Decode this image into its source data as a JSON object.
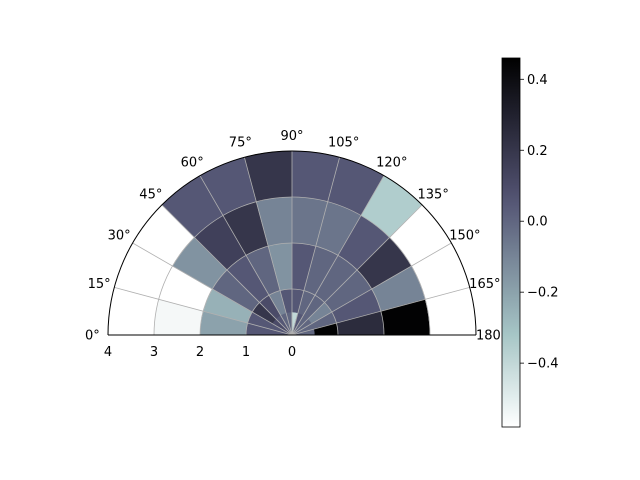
{
  "chart_data": {
    "type": "heatmap",
    "projection": "polar",
    "theta_range_deg": [
      0,
      180
    ],
    "r_range": [
      0,
      4
    ],
    "theta_ticks": [
      "0°",
      "15°",
      "30°",
      "45°",
      "60°",
      "75°",
      "90°",
      "105°",
      "120°",
      "135°",
      "150°",
      "165°",
      "180°"
    ],
    "r_ticks": [
      "4",
      "3",
      "2",
      "1",
      "0"
    ],
    "r_tick_values": [
      4,
      3,
      2,
      1,
      0
    ],
    "r_edges": [
      0,
      0.5,
      1,
      2,
      3,
      4
    ],
    "theta_edges_deg": [
      0,
      15,
      30,
      45,
      60,
      75,
      90,
      105,
      120,
      135,
      150,
      165,
      180
    ],
    "values": [
      [
        0.05,
        0.05,
        0.1,
        0.05,
        0.0,
        0.0,
        -0.4,
        0.05,
        0.0,
        0.0,
        0.0,
        0.0
      ],
      [
        0.05,
        0.05,
        0.2,
        0.1,
        -0.1,
        0.05,
        0.05,
        0.0,
        0.0,
        -0.1,
        0.0,
        0.45
      ],
      [
        -0.2,
        -0.25,
        0.0,
        0.05,
        0.0,
        -0.15,
        0.05,
        0.0,
        0.0,
        0.0,
        0.05,
        0.25
      ],
      [
        -0.55,
        -0.6,
        -0.15,
        0.15,
        0.2,
        -0.1,
        -0.05,
        -0.05,
        0.05,
        0.2,
        -0.1,
        0.45
      ],
      [
        -0.6,
        -0.6,
        -0.6,
        0.05,
        0.05,
        0.2,
        0.05,
        0.05,
        -0.35,
        -0.6,
        -0.6,
        -0.6
      ]
    ],
    "colormap": "bone_r",
    "colorbar": {
      "vmin": -0.58,
      "vmax": 0.46,
      "ticks": [
        0.4,
        0.2,
        0.0,
        -0.2,
        -0.4
      ],
      "tick_labels": [
        "0.4",
        "0.2",
        "0.0",
        "−0.2",
        "−0.4"
      ]
    },
    "grid": true
  }
}
